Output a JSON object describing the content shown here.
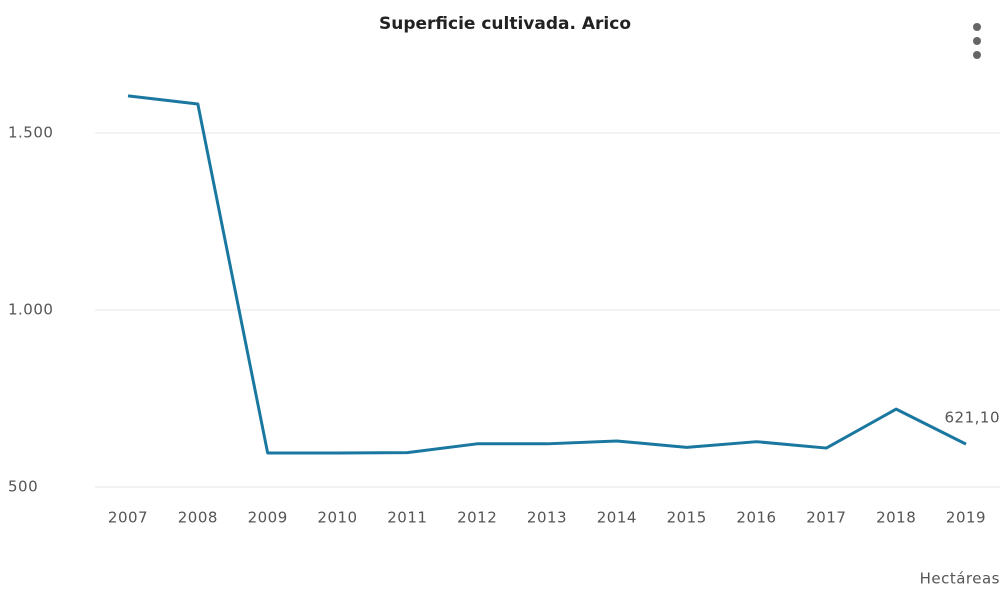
{
  "chart_data": {
    "type": "line",
    "title": "Superficie cultivada. Arico",
    "categories": [
      "2007",
      "2008",
      "2009",
      "2010",
      "2011",
      "2012",
      "2013",
      "2014",
      "2015",
      "2016",
      "2017",
      "2018",
      "2019"
    ],
    "series": [
      {
        "name": "Superficie cultivada",
        "color": "#1a78a0",
        "values": [
          1605,
          1582,
          596,
          596,
          597,
          622,
          622,
          630,
          612,
          628,
          610,
          720,
          621.1
        ],
        "value_labels": [
          null,
          null,
          null,
          null,
          null,
          null,
          null,
          null,
          null,
          null,
          null,
          null,
          "621,10"
        ]
      }
    ],
    "ylim": [
      500,
      1700
    ],
    "yticks": [
      500,
      {
        "value": 1000,
        "label": "1.000"
      },
      {
        "value": 1500,
        "label": "1.500"
      }
    ],
    "grid": true,
    "unit_label": "Hectáreas"
  }
}
